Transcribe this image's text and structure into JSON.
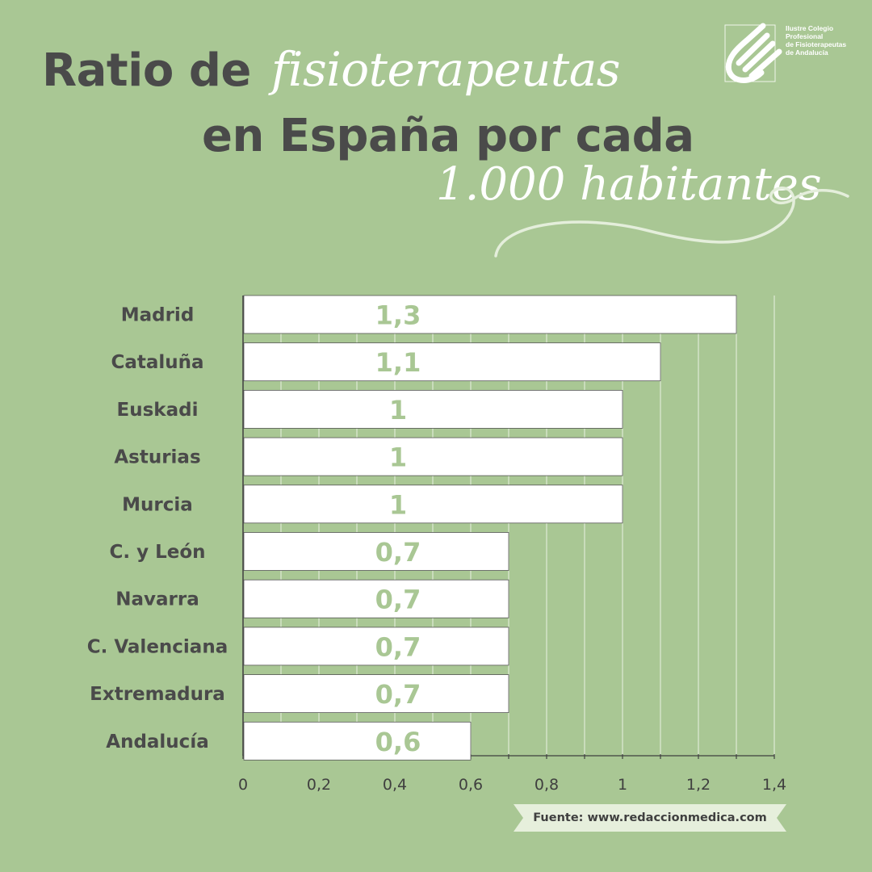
{
  "title": {
    "line1_bold": "Ratio de",
    "line1_script": "fisioterapeutas",
    "line2": "en España por cada",
    "line3_script": "1.000 habitantes"
  },
  "logo": {
    "lines": [
      "Ilustre Colegio",
      "Profesional",
      "de Fisioterapeutas",
      "de Andalucía"
    ]
  },
  "source": "Fuente: www.redaccionmedica.com",
  "colors": {
    "background": "#a9c794",
    "bar_fill": "#ffffff",
    "value_label": "#a9c794",
    "text_dark": "#4a4a4a"
  },
  "chart_data": {
    "type": "bar",
    "orientation": "horizontal",
    "categories": [
      "Madrid",
      "Cataluña",
      "Euskadi",
      "Asturias",
      "Murcia",
      "C. y León",
      "Navarra",
      "C. Valenciana",
      "Extremadura",
      "Andalucía"
    ],
    "values": [
      1.3,
      1.1,
      1,
      1,
      1,
      0.7,
      0.7,
      0.7,
      0.7,
      0.6
    ],
    "value_labels": [
      "1,3",
      "1,1",
      "1",
      "1",
      "1",
      "0,7",
      "0,7",
      "0,7",
      "0,7",
      "0,6"
    ],
    "x_ticks": [
      0,
      0.2,
      0.4,
      0.6,
      0.8,
      1,
      1.2,
      1.4
    ],
    "x_tick_labels": [
      "0",
      "0,2",
      "0,4",
      "0,6",
      "0,8",
      "1",
      "1,2",
      "1,4"
    ],
    "xlim": [
      0,
      1.4
    ],
    "grid": true,
    "legend": "none"
  }
}
